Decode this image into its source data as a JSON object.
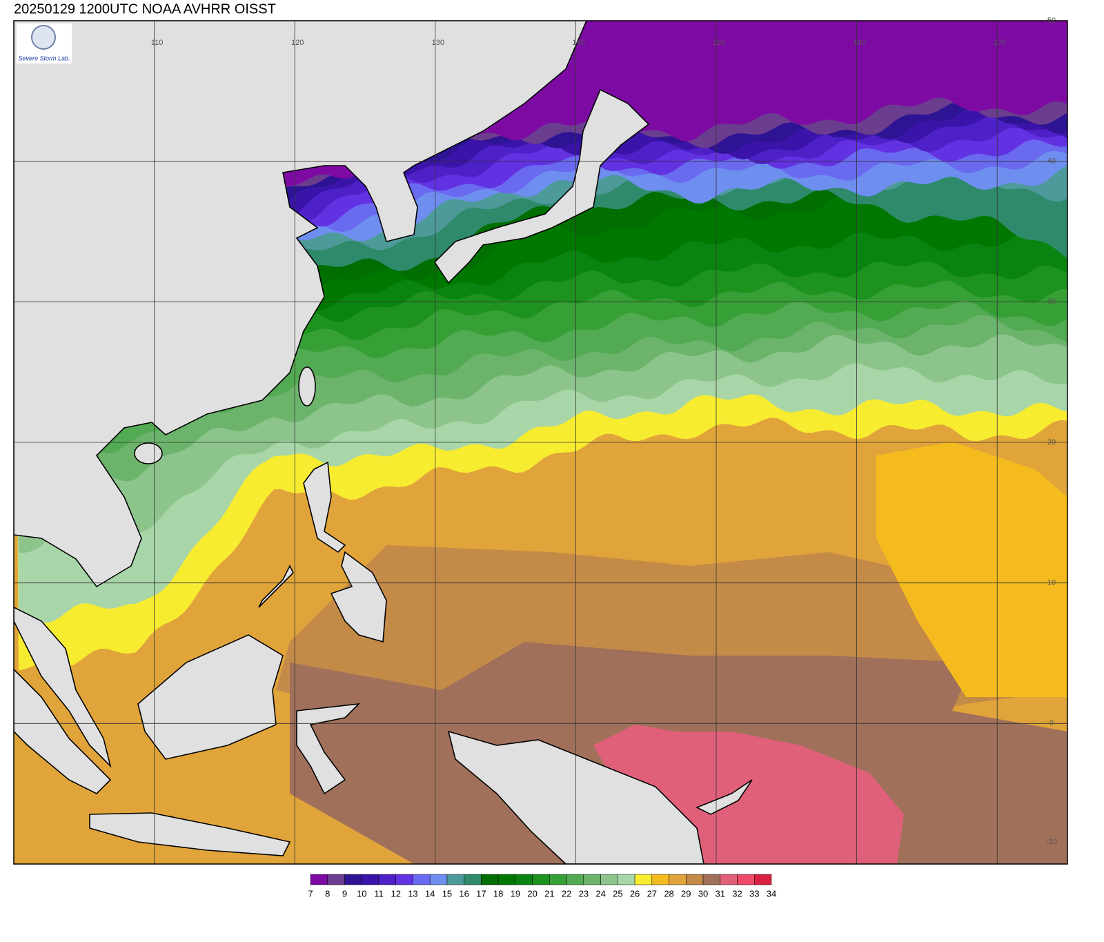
{
  "title": "20250129 1200UTC NOAA AVHRR OISST",
  "logo": {
    "text": "Severe Storm Lab."
  },
  "map": {
    "lonlim": [
      100,
      175
    ],
    "latlim": [
      -10,
      50
    ],
    "lon_ticks": [
      110,
      120,
      130,
      140,
      150,
      160,
      170
    ],
    "lat_ticks": [
      50,
      40,
      30,
      20,
      10,
      0,
      -10
    ]
  },
  "colorbar": {
    "levels": [
      7,
      8,
      9,
      10,
      11,
      12,
      13,
      14,
      15,
      16,
      17,
      18,
      19,
      20,
      21,
      22,
      23,
      24,
      25,
      26,
      27,
      28,
      29,
      30,
      31,
      32,
      33,
      34
    ],
    "colors": [
      "#7e0aa4",
      "#6b3d8f",
      "#2e1494",
      "#3a14a8",
      "#4d20c8",
      "#6232e2",
      "#6a6af0",
      "#6e8ef0",
      "#4e9a9a",
      "#2e8a6a",
      "#006e00",
      "#007800",
      "#0a8410",
      "#1e921e",
      "#36a036",
      "#52aa52",
      "#6cb46c",
      "#8cc48c",
      "#a8d6a8",
      "#f8ec30",
      "#f5bb1e",
      "#e0a43a",
      "#c48a48",
      "#a0705a",
      "#e0607a",
      "#f04a6a",
      "#d82040"
    ]
  }
}
